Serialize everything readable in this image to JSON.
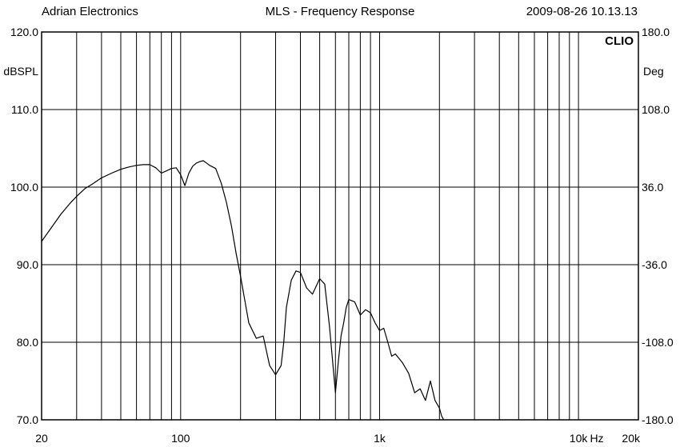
{
  "header": {
    "company": "Adrian Electronics",
    "title": "MLS - Frequency Response",
    "timestamp": "2009-08-26 10.13.13"
  },
  "brand": "CLIO",
  "colors": {
    "background": "#ffffff",
    "grid": "#000000",
    "trace": "#000000"
  },
  "chart_data": {
    "type": "line",
    "title": "MLS - Frequency Response",
    "x_scale": "log",
    "xlim": [
      20,
      20000
    ],
    "ylim": [
      70,
      120
    ],
    "y2lim": [
      -180,
      180
    ],
    "xlabel": "Hz",
    "ylabel": "dBSPL",
    "y2label": "Deg",
    "grid": true,
    "legend": "none",
    "x_ticks": [
      {
        "value": 20,
        "label": "20"
      },
      {
        "value": 100,
        "label": "100"
      },
      {
        "value": 1000,
        "label": "1k"
      },
      {
        "value": 10000,
        "label": "10k"
      },
      {
        "value": 20000,
        "label": "20k"
      }
    ],
    "y_ticks": [
      {
        "value": 120,
        "label": "120.0"
      },
      {
        "value": 110,
        "label": "110.0"
      },
      {
        "value": 100,
        "label": "100.0"
      },
      {
        "value": 90,
        "label": "90.0"
      },
      {
        "value": 80,
        "label": "80.0"
      },
      {
        "value": 70,
        "label": "70.0"
      }
    ],
    "y2_ticks": [
      {
        "value": 180,
        "label": "180.0"
      },
      {
        "value": 108,
        "label": "108.0"
      },
      {
        "value": 36,
        "label": "36.0"
      },
      {
        "value": -36,
        "label": "-36.0"
      },
      {
        "value": -108,
        "label": "-108.0"
      },
      {
        "value": -180,
        "label": "-180.0"
      }
    ],
    "series": [
      {
        "x": [
          20,
          22,
          25,
          28,
          30,
          33,
          36,
          40,
          45,
          50,
          55,
          60,
          65,
          70,
          75,
          80,
          85,
          90,
          95,
          100,
          105,
          110,
          115,
          120,
          125,
          130,
          140,
          150,
          160,
          170,
          180,
          190,
          200,
          220,
          240,
          260,
          280,
          300,
          320,
          330,
          340,
          360,
          380,
          400,
          430,
          460,
          500,
          530,
          560,
          600,
          620,
          640,
          660,
          680,
          700,
          750,
          800,
          850,
          900,
          950,
          1000,
          1050,
          1100,
          1150,
          1200,
          1300,
          1400,
          1500,
          1600,
          1700,
          1800,
          1900,
          2000,
          2050,
          2100
        ],
        "y": [
          93.0,
          94.5,
          96.5,
          98.0,
          98.8,
          99.8,
          100.4,
          101.2,
          101.8,
          102.3,
          102.6,
          102.8,
          102.9,
          102.9,
          102.5,
          101.8,
          102.1,
          102.4,
          102.5,
          101.6,
          100.2,
          101.8,
          102.7,
          103.1,
          103.3,
          103.4,
          102.8,
          102.4,
          100.5,
          98.0,
          95.0,
          91.5,
          88.5,
          82.5,
          80.5,
          80.8,
          77.0,
          75.8,
          77.0,
          80.0,
          84.5,
          88.0,
          89.2,
          89.0,
          87.0,
          86.2,
          88.2,
          87.5,
          82.0,
          73.5,
          77.5,
          80.8,
          82.5,
          84.5,
          85.5,
          85.2,
          83.5,
          84.2,
          83.8,
          82.5,
          81.5,
          81.8,
          80.0,
          78.2,
          78.5,
          77.4,
          76.0,
          73.5,
          74.0,
          72.5,
          75.0,
          72.5,
          71.5,
          70.5,
          70.0
        ]
      }
    ]
  }
}
